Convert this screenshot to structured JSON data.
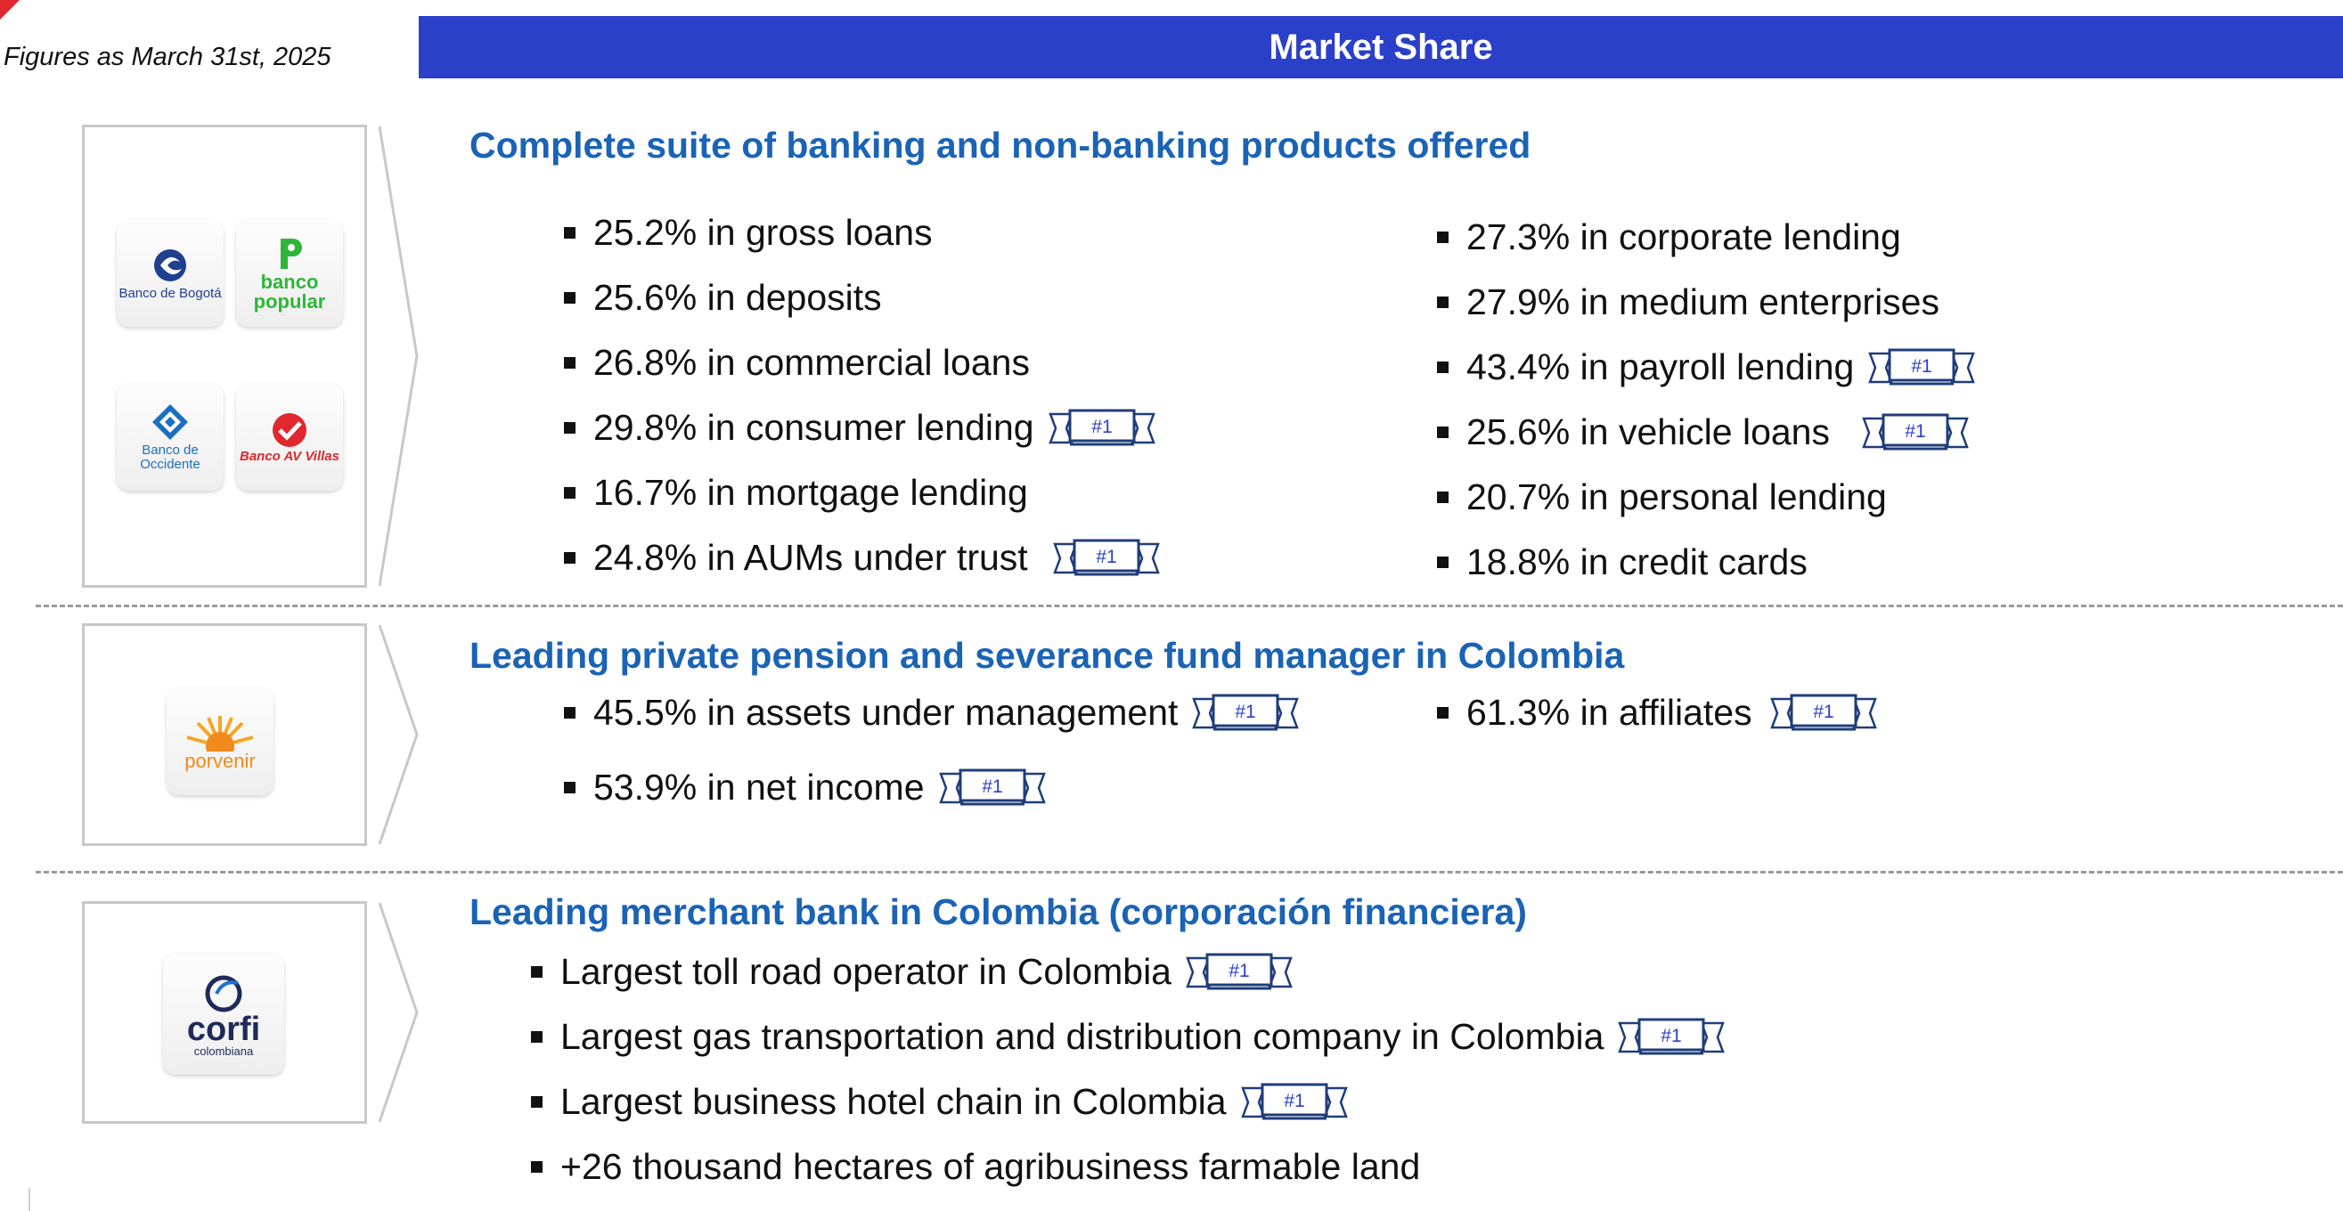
{
  "header": {
    "figures_note": "Figures as March 31st, 2025",
    "banner_title": "Market Share"
  },
  "rank_badge": "#1",
  "colors": {
    "banner": "#2b40c8",
    "heading": "#1a63b5",
    "badge": "#1f3d7a",
    "accent_red": "#e0282e"
  },
  "section1": {
    "heading": "Complete suite of banking and non-banking products offered",
    "logos": [
      {
        "icon": "banco-de-bogota-logo",
        "text": "Banco de Bogotá"
      },
      {
        "icon": "banco-popular-logo",
        "text": "banco popular"
      },
      {
        "icon": "banco-de-occidente-logo",
        "text": "Banco de Occidente"
      },
      {
        "icon": "banco-av-villas-logo",
        "text": "Banco AV Villas"
      }
    ],
    "left": [
      {
        "text": "25.2% in gross loans",
        "rank": false
      },
      {
        "text": "25.6% in deposits",
        "rank": false
      },
      {
        "text": "26.8% in commercial loans",
        "rank": false
      },
      {
        "text": "29.8% in consumer lending",
        "rank": true
      },
      {
        "text": "16.7% in mortgage lending",
        "rank": false
      },
      {
        "text": "24.8% in AUMs under trust",
        "rank": true
      }
    ],
    "right": [
      {
        "text": "27.3% in corporate lending",
        "rank": false
      },
      {
        "text": "27.9% in medium enterprises",
        "rank": false
      },
      {
        "text": "43.4% in payroll lending",
        "rank": true
      },
      {
        "text": "25.6% in vehicle loans",
        "rank": true
      },
      {
        "text": "20.7% in personal lending",
        "rank": false
      },
      {
        "text": "18.8% in credit cards",
        "rank": false
      }
    ]
  },
  "section2": {
    "heading": "Leading private pension and severance fund manager in Colombia",
    "logo": {
      "icon": "porvenir-logo",
      "text": "porvenir"
    },
    "items": [
      {
        "text": "45.5% in assets under management",
        "rank": true
      },
      {
        "text": "61.3% in affiliates",
        "rank": true
      },
      {
        "text": "53.9% in net income",
        "rank": true
      }
    ]
  },
  "section3": {
    "heading": "Leading merchant bank in Colombia (corporación financiera)",
    "logo": {
      "icon": "corficolombiana-logo",
      "text": "corfi",
      "subtext": "colombiana"
    },
    "items": [
      {
        "text": "Largest toll road operator in Colombia",
        "rank": true
      },
      {
        "text": "Largest gas transportation and distribution company in Colombia",
        "rank": true
      },
      {
        "text": "Largest business hotel chain in Colombia",
        "rank": true
      },
      {
        "text": "+26 thousand hectares of agribusiness farmable land",
        "rank": false
      }
    ]
  }
}
